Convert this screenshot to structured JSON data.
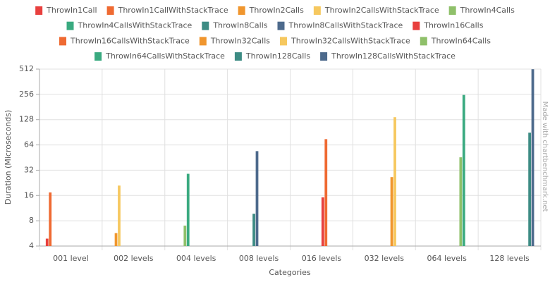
{
  "chart_data": {
    "type": "bar",
    "y_label": "Duration (Microseconds)",
    "x_label": "Categories",
    "watermark": "Made with chartbenchmark.net",
    "categories": [
      "001 level",
      "002 levels",
      "004 levels",
      "008 levels",
      "016 levels",
      "032 levels",
      "064 levels",
      "128 levels"
    ],
    "ylim": [
      4,
      512
    ],
    "yticks": [
      4,
      8,
      16,
      32,
      64,
      128,
      256,
      512
    ],
    "log_scale": true,
    "log_base": 2,
    "grid": true,
    "legend": "top",
    "series": [
      {
        "name": "ThrowIn1Call",
        "color": "#e8403e",
        "values": [
          4.9,
          null,
          null,
          null,
          null,
          null,
          null,
          null
        ]
      },
      {
        "name": "ThrowIn1CallWithStackTrace",
        "color": "#ef6a32",
        "values": [
          17.4,
          null,
          null,
          null,
          null,
          null,
          null,
          null
        ]
      },
      {
        "name": "ThrowIn2Calls",
        "color": "#f0962e",
        "values": [
          null,
          5.7,
          null,
          null,
          null,
          null,
          null,
          null
        ]
      },
      {
        "name": "ThrowIn2CallsWithStackTrace",
        "color": "#f6c85f",
        "values": [
          null,
          21,
          null,
          null,
          null,
          null,
          null,
          null
        ]
      },
      {
        "name": "ThrowIn4Calls",
        "color": "#8fc06a",
        "values": [
          null,
          null,
          7,
          null,
          null,
          null,
          null,
          null
        ]
      },
      {
        "name": "ThrowIn4CallsWithStackTrace",
        "color": "#3aaa80",
        "values": [
          null,
          null,
          29,
          null,
          null,
          null,
          null,
          null
        ]
      },
      {
        "name": "ThrowIn8Calls",
        "color": "#3d8c84",
        "values": [
          null,
          null,
          null,
          9.7,
          null,
          null,
          null,
          null
        ]
      },
      {
        "name": "ThrowIn8CallsWithStackTrace",
        "color": "#4d6a8c",
        "values": [
          null,
          null,
          null,
          54,
          null,
          null,
          null,
          null
        ]
      },
      {
        "name": "ThrowIn16Calls",
        "color": "#e8403e",
        "values": [
          null,
          null,
          null,
          null,
          15.2,
          null,
          null,
          null
        ]
      },
      {
        "name": "ThrowIn16CallsWithStackTrace",
        "color": "#ef6a32",
        "values": [
          null,
          null,
          null,
          null,
          75,
          null,
          null,
          null
        ]
      },
      {
        "name": "ThrowIn32Calls",
        "color": "#f0962e",
        "values": [
          null,
          null,
          null,
          null,
          null,
          26.5,
          null,
          null
        ]
      },
      {
        "name": "ThrowIn32CallsWithStackTrace",
        "color": "#f6c85f",
        "values": [
          null,
          null,
          null,
          null,
          null,
          137,
          null,
          null
        ]
      },
      {
        "name": "ThrowIn64Calls",
        "color": "#8fc06a",
        "values": [
          null,
          null,
          null,
          null,
          null,
          null,
          45.6,
          null
        ]
      },
      {
        "name": "ThrowIn64CallsWithStackTrace",
        "color": "#3aaa80",
        "values": [
          null,
          null,
          null,
          null,
          null,
          null,
          252,
          null
        ]
      },
      {
        "name": "ThrowIn128Calls",
        "color": "#3d8c84",
        "values": [
          null,
          null,
          null,
          null,
          null,
          null,
          null,
          89.6
        ]
      },
      {
        "name": "ThrowIn128CallsWithStackTrace",
        "color": "#4d6a8c",
        "values": [
          null,
          null,
          null,
          null,
          null,
          null,
          null,
          510
        ]
      }
    ]
  }
}
